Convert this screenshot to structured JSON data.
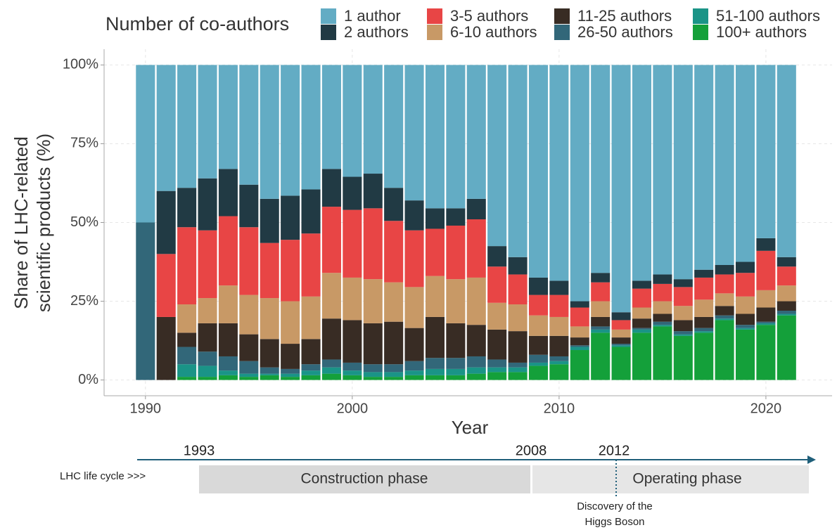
{
  "chart_data": {
    "type": "stacked_bar",
    "legend_title": "Number of co-authors",
    "xlabel": "Year",
    "ylabel": [
      "Share of LHC-related",
      "scientific products (%)"
    ],
    "x": [
      1990,
      1991,
      1992,
      1993,
      1994,
      1995,
      1996,
      1997,
      1998,
      1999,
      2000,
      2001,
      2002,
      2003,
      2004,
      2005,
      2006,
      2007,
      2008,
      2009,
      2010,
      2011,
      2012,
      2013,
      2014,
      2015,
      2016,
      2017,
      2018,
      2019,
      2020,
      2021
    ],
    "xlim": [
      1988,
      2023.2
    ],
    "xticks": [
      1990,
      2000,
      2010,
      2020
    ],
    "ylim": [
      -5,
      105
    ],
    "yticks": [
      {
        "value": 0,
        "label": "0%"
      },
      {
        "value": 25,
        "label": "25%"
      },
      {
        "value": 50,
        "label": "50%"
      },
      {
        "value": 75,
        "label": "75%"
      },
      {
        "value": 100,
        "label": "100%"
      }
    ],
    "grid": true,
    "legend_position": "top",
    "series": [
      {
        "name": "100+ authors",
        "color": "#14a03a",
        "values": [
          0,
          0,
          1,
          1,
          1.5,
          1,
          1.5,
          1,
          1.5,
          2,
          1.5,
          1,
          1,
          1.5,
          1.5,
          1.5,
          2,
          2.5,
          2.5,
          4.5,
          5,
          9.5,
          15,
          10.5,
          15,
          17,
          14,
          15,
          19,
          16,
          17.5,
          20.5
        ]
      },
      {
        "name": "51-100 authors",
        "color": "#1a9487",
        "values": [
          0,
          0,
          4,
          3.5,
          1.5,
          1,
          0.5,
          1,
          1.5,
          2,
          1.5,
          1.5,
          1.5,
          1.5,
          2,
          2,
          2,
          1.5,
          1.5,
          1,
          1,
          1,
          1,
          0.5,
          1,
          0.5,
          0.5,
          0.5,
          0.5,
          0.5,
          0.5,
          0.5
        ]
      },
      {
        "name": "26-50 authors",
        "color": "#326779",
        "values": [
          50,
          0,
          5.5,
          4.5,
          4.5,
          4,
          2,
          1.5,
          2,
          2.5,
          2.5,
          2.5,
          2.5,
          3,
          3.5,
          3.5,
          3.5,
          2.5,
          1.5,
          2.5,
          1.5,
          0.5,
          1,
          0.5,
          0.5,
          1,
          1,
          1,
          1,
          1,
          0.5,
          1
        ]
      },
      {
        "name": "11-25 authors",
        "color": "#382c24",
        "values": [
          0,
          20,
          4.5,
          9,
          10.5,
          8.5,
          9,
          8,
          8,
          13,
          13.5,
          13,
          13.5,
          10.5,
          13,
          11,
          10,
          9.5,
          10,
          6,
          6.5,
          2.5,
          3,
          2,
          3,
          2.5,
          3.5,
          3.5,
          3,
          3.5,
          4.5,
          3
        ]
      },
      {
        "name": "6-10 authors",
        "color": "#c89966",
        "values": [
          0,
          0,
          9,
          8,
          12,
          12.5,
          13,
          13.5,
          13.5,
          14.5,
          13.5,
          14,
          12.5,
          13,
          13,
          14,
          15,
          8.5,
          8.5,
          6.5,
          6,
          3.5,
          5,
          2.5,
          3.5,
          4,
          4.5,
          5.5,
          4,
          5.5,
          5.5,
          5
        ]
      },
      {
        "name": "3-5 authors",
        "color": "#e84545",
        "values": [
          0,
          20,
          24.5,
          21.5,
          22,
          21.5,
          17.5,
          19.5,
          20,
          21,
          21.5,
          22.5,
          19.5,
          18,
          15,
          17,
          18.5,
          11.5,
          9.5,
          6.5,
          7,
          6,
          6,
          3,
          6,
          5.5,
          6,
          7,
          6,
          7.5,
          12.5,
          6
        ]
      },
      {
        "name": "2 authors",
        "color": "#213a44",
        "values": [
          0,
          20,
          12.5,
          16.5,
          15,
          13.5,
          14,
          14,
          14,
          12,
          10.5,
          11,
          10.5,
          9.5,
          6.5,
          5.5,
          6.5,
          6.5,
          5.5,
          5.5,
          4.5,
          2,
          3,
          2.5,
          2.5,
          3,
          2.5,
          2.5,
          3,
          3.5,
          4,
          3
        ]
      },
      {
        "name": "1 author",
        "color": "#63acc4",
        "values": [
          50,
          40,
          39,
          36,
          33,
          38,
          42.5,
          41.5,
          39.5,
          33,
          35.5,
          34.5,
          39,
          43,
          45.5,
          45.5,
          42.5,
          57.5,
          61,
          67.5,
          68.5,
          75,
          66,
          78.5,
          68.5,
          66.5,
          68,
          65,
          63.5,
          62.5,
          55,
          61
        ]
      }
    ],
    "legend_order": [
      7,
      6,
      5,
      4,
      3,
      2,
      1,
      0
    ]
  },
  "timeline": {
    "label": "LHC life cycle >>>",
    "years": [
      "1993",
      "2008",
      "2012"
    ],
    "phases": [
      "Construction phase",
      "Operating phase"
    ],
    "event": [
      "Discovery of the",
      "Higgs Boson"
    ]
  }
}
